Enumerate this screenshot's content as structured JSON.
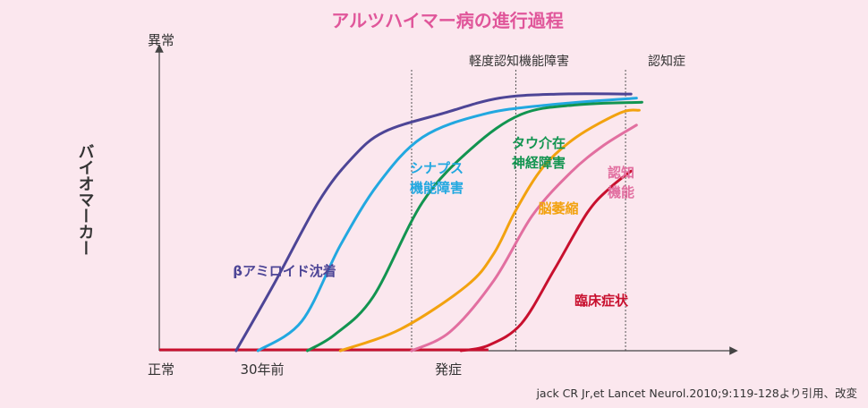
{
  "chart_data": {
    "type": "line",
    "title": "アルツハイマー病の進行過程",
    "ylabel": "バイオマーカー",
    "y_top_label": "異常",
    "y_bottom_label": "正常",
    "x_tick_labels": [
      {
        "label": "30年前",
        "x": 1.2
      },
      {
        "label": "発症",
        "x": 4.6
      }
    ],
    "phases": [
      {
        "label": "軽度認知機能障害",
        "x": 4.6
      },
      {
        "label": "認知症",
        "x": 8.5
      }
    ],
    "extra_lines": [
      6.5
    ],
    "xlim": [
      0,
      10
    ],
    "ylim": [
      0,
      1
    ],
    "series": [
      {
        "name": "βアミロイド沈着",
        "color": "#4d4596",
        "label_lines": [
          "βアミロイド沈着"
        ],
        "points": [
          [
            1.4,
            0
          ],
          [
            2.1,
            0.25
          ],
          [
            2.9,
            0.55
          ],
          [
            3.5,
            0.71
          ],
          [
            4.1,
            0.81
          ],
          [
            5.2,
            0.88
          ],
          [
            6.2,
            0.935
          ],
          [
            7.3,
            0.95
          ],
          [
            8.6,
            0.95
          ]
        ]
      },
      {
        "name": "シナプス機能障害",
        "color": "#22a8e0",
        "label_lines": [
          "シナプス",
          "機能障害"
        ],
        "points": [
          [
            1.8,
            0
          ],
          [
            2.6,
            0.11
          ],
          [
            3.3,
            0.39
          ],
          [
            4.0,
            0.62
          ],
          [
            4.8,
            0.79
          ],
          [
            5.9,
            0.875
          ],
          [
            7.1,
            0.91
          ],
          [
            8.7,
            0.935
          ]
        ]
      },
      {
        "name": "タウ介在神経障害",
        "color": "#129450",
        "label_lines": [
          "タウ介在",
          "神経障害"
        ],
        "points": [
          [
            2.7,
            0
          ],
          [
            3.2,
            0.06
          ],
          [
            3.9,
            0.2
          ],
          [
            4.8,
            0.55
          ],
          [
            5.7,
            0.75
          ],
          [
            6.6,
            0.875
          ],
          [
            7.6,
            0.91
          ],
          [
            8.8,
            0.92
          ]
        ]
      },
      {
        "name": "脳萎縮",
        "color": "#f2a20f",
        "label_lines": [
          "脳萎縮"
        ],
        "points": [
          [
            3.3,
            0
          ],
          [
            4.4,
            0.08
          ],
          [
            5.6,
            0.24
          ],
          [
            6.1,
            0.36
          ],
          [
            6.5,
            0.52
          ],
          [
            7.0,
            0.68
          ],
          [
            7.6,
            0.79
          ],
          [
            8.4,
            0.88
          ],
          [
            8.75,
            0.89
          ]
        ]
      },
      {
        "name": "認知機能",
        "color": "#e26fa0",
        "label_lines": [
          "認知",
          "機能"
        ],
        "points": [
          [
            4.6,
            0
          ],
          [
            5.3,
            0.07
          ],
          [
            6.1,
            0.26
          ],
          [
            6.8,
            0.5
          ],
          [
            7.5,
            0.66
          ],
          [
            8.1,
            0.76
          ],
          [
            8.7,
            0.835
          ]
        ]
      },
      {
        "name": "臨床症状",
        "color": "#c8102e",
        "label_lines": [
          "臨床症状"
        ],
        "points": [
          [
            5.5,
            0
          ],
          [
            6.0,
            0.02
          ],
          [
            6.6,
            0.1
          ],
          [
            7.2,
            0.3
          ],
          [
            7.8,
            0.51
          ],
          [
            8.2,
            0.6
          ],
          [
            8.6,
            0.665
          ]
        ]
      }
    ],
    "baseline_color": "#c8102e",
    "grid": false
  },
  "source": "jack CR Jr,et Lancet Neurol.2010;9:119-128より引用、改変"
}
